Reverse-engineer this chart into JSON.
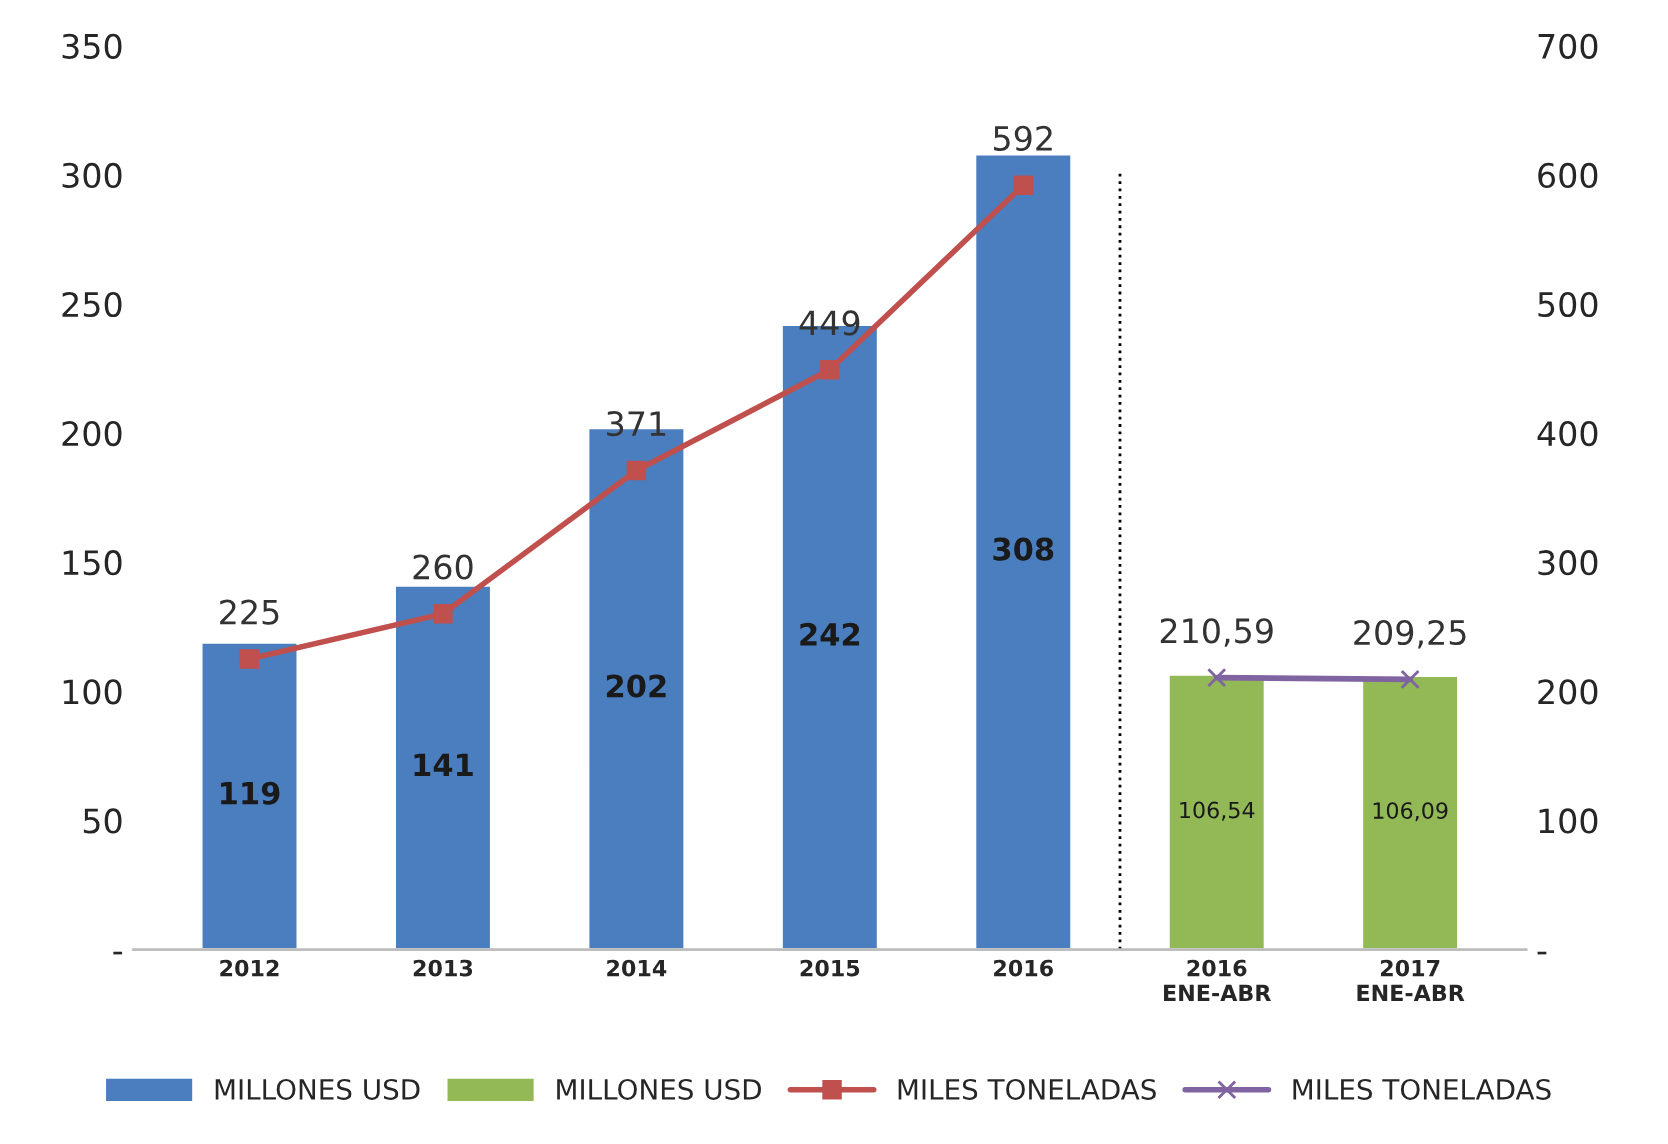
{
  "chart_data": {
    "type": "bar",
    "categories": [
      "2012",
      "2013",
      "2014",
      "2015",
      "2016",
      "2016\nENE-ABR",
      "2017\nENE-ABR"
    ],
    "series": [
      {
        "name": "MILLONES USD",
        "color": "#4a7ebf",
        "values": [
          119,
          141,
          202,
          242,
          308,
          null,
          null
        ],
        "value_labels": [
          "119",
          "141",
          "202",
          "242",
          "308",
          null,
          null
        ]
      },
      {
        "name": "MILLONES USD",
        "color": "#93b956",
        "values": [
          null,
          null,
          null,
          null,
          null,
          106.54,
          106.09
        ],
        "value_labels": [
          null,
          null,
          null,
          null,
          null,
          "106,54",
          "106,09"
        ]
      },
      {
        "name": "MILES TONELADAS",
        "type": "line",
        "axis": "y2",
        "color": "#c0504d",
        "marker": "square",
        "values": [
          225,
          260,
          371,
          449,
          592,
          null,
          null
        ],
        "value_labels": [
          "225",
          "260",
          "371",
          "449",
          "592",
          null,
          null
        ]
      },
      {
        "name": "MILES TONELADAS",
        "type": "line",
        "axis": "y2",
        "color": "#8064a2",
        "marker": "cross",
        "values": [
          null,
          null,
          null,
          null,
          null,
          210.59,
          209.25
        ],
        "value_labels": [
          null,
          null,
          null,
          null,
          null,
          "210,59",
          "209,25"
        ]
      }
    ],
    "ylim": [
      0,
      350
    ],
    "yticks": [
      {
        "value": 0,
        "label": "-"
      },
      50,
      100,
      150,
      200,
      250,
      300,
      350
    ],
    "y2lim": [
      0,
      700
    ],
    "y2ticks": [
      {
        "value": 0,
        "label": "-"
      },
      100,
      200,
      300,
      400,
      500,
      600,
      700
    ],
    "legend": "bottom",
    "grid": false
  }
}
